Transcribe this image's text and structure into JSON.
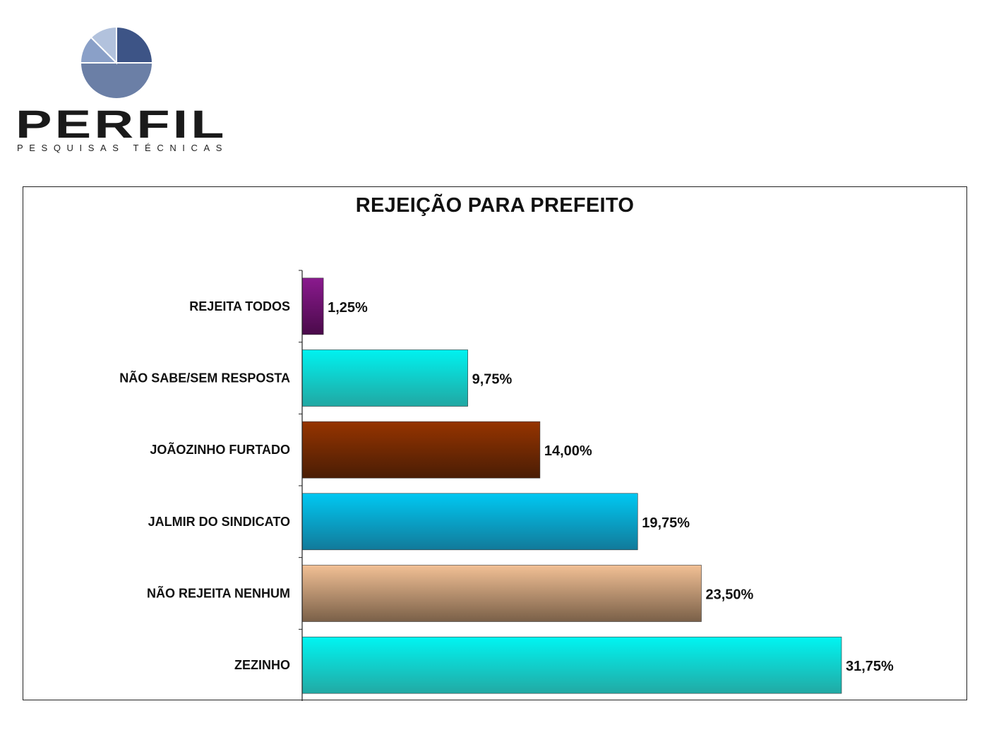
{
  "logo": {
    "brand": "PERFIL",
    "tagline": "PESQUISAS TÉCNICAS",
    "colors": [
      "#3d5486",
      "#6b7fa6",
      "#8aa0c8",
      "#b2c2dd"
    ]
  },
  "chart_data": {
    "type": "bar",
    "orientation": "horizontal",
    "title": "REJEIÇÃO PARA PREFEITO",
    "xlabel": "",
    "ylabel": "",
    "xlim": [
      0,
      35
    ],
    "grid": false,
    "legend": "none",
    "categories": [
      "REJEITA TODOS",
      "NÃO SABE/SEM RESPOSTA",
      "JOÃOZINHO FURTADO",
      "JALMIR DO SINDICATO",
      "NÃO REJEITA NENHUM",
      "ZEZINHO"
    ],
    "values": [
      1.25,
      9.75,
      14.0,
      19.75,
      23.5,
      31.75
    ],
    "value_labels": [
      "1,25%",
      "9,75%",
      "14,00%",
      "19,75%",
      "23,50%",
      "31,75%"
    ],
    "colors": [
      [
        "#8a1a8e",
        "#4a0a4a"
      ],
      [
        "#00f2f0",
        "#21a7a2"
      ],
      [
        "#963400",
        "#4a1d05"
      ],
      [
        "#00c8f2",
        "#127a9a"
      ],
      [
        "#f2c095",
        "#7a6048"
      ],
      [
        "#00f5f2",
        "#22a9a4"
      ]
    ]
  }
}
